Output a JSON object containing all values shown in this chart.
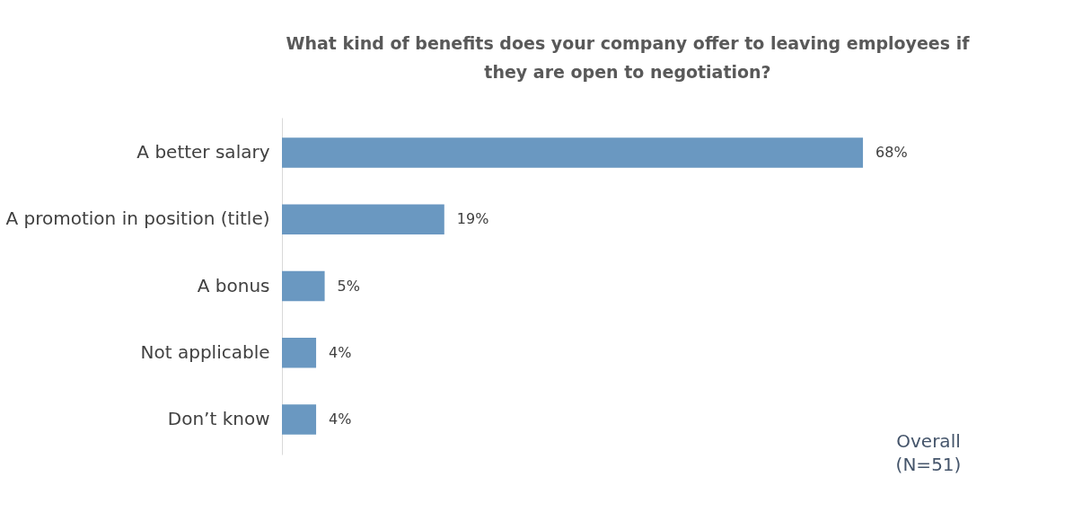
{
  "chart_data": {
    "type": "bar",
    "orientation": "horizontal",
    "title": "What kind of benefits does your company offer to leaving employees if they are open to negotiation?",
    "categories": [
      "A better salary",
      "A promotion in position (title)",
      "A bonus",
      "Not applicable",
      "Don’t know"
    ],
    "values": [
      68,
      19,
      5,
      4,
      4
    ],
    "value_labels": [
      "68%",
      "19%",
      "5%",
      "4%",
      "4%"
    ],
    "color": "#6a98c1",
    "annotations": [
      "Overall\n(N=51)"
    ]
  }
}
